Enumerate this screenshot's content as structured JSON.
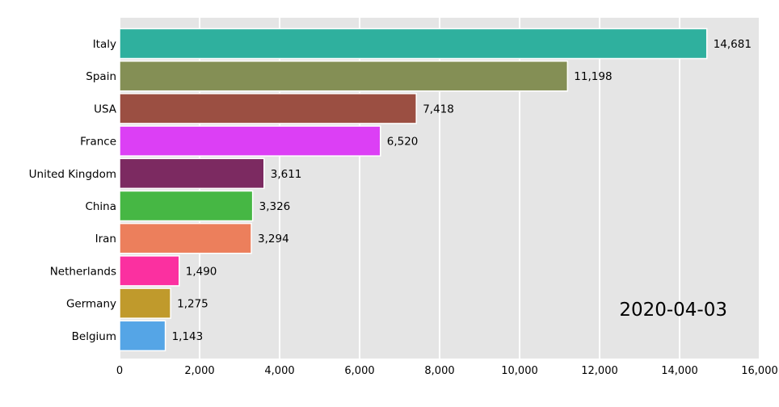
{
  "chart_data": {
    "type": "bar",
    "orientation": "horizontal",
    "categories": [
      "Italy",
      "Spain",
      "USA",
      "France",
      "United Kingdom",
      "China",
      "Iran",
      "Netherlands",
      "Germany",
      "Belgium"
    ],
    "values": [
      14681,
      11198,
      7418,
      6520,
      3611,
      3326,
      3294,
      1490,
      1275,
      1143
    ],
    "value_labels": [
      "14,681",
      "11,198",
      "7,418",
      "6,520",
      "3,611",
      "3,326",
      "3,294",
      "1,490",
      "1,275",
      "1,143"
    ],
    "colors": [
      "#2fb09e",
      "#848f55",
      "#9b4f42",
      "#dc3ff5",
      "#7c2a61",
      "#46b744",
      "#ec7f5c",
      "#fb30a0",
      "#c09a2c",
      "#55a5e6"
    ],
    "xlim": [
      0,
      16000
    ],
    "xticks": [
      0,
      2000,
      4000,
      6000,
      8000,
      10000,
      12000,
      14000,
      16000
    ],
    "xtick_labels": [
      "0",
      "2,000",
      "4,000",
      "6,000",
      "8,000",
      "10,000",
      "12,000",
      "14,000",
      "16,000"
    ],
    "date": "2020-04-03",
    "grid": true,
    "background": "#e5e5e5",
    "title": "",
    "xlabel": "",
    "ylabel": ""
  }
}
